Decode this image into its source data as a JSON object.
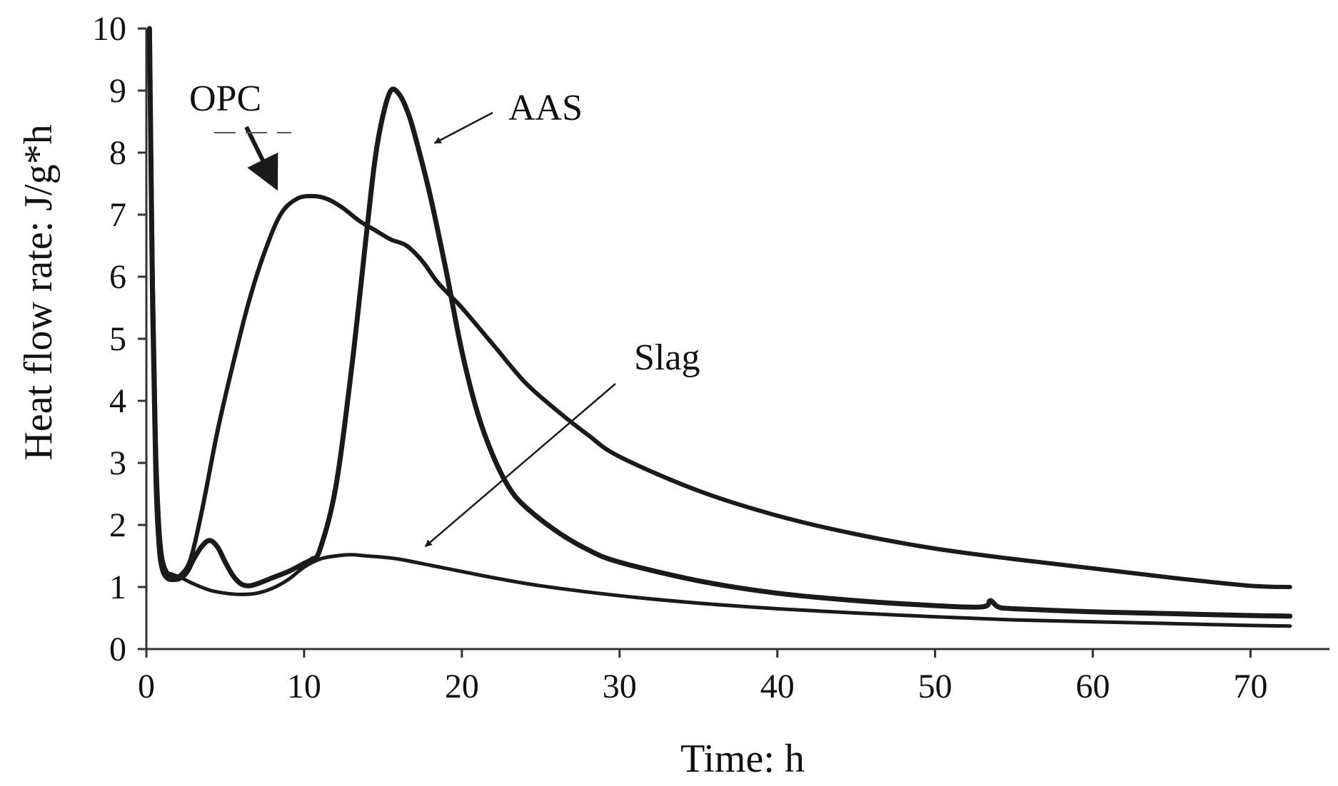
{
  "chart_data": {
    "type": "line",
    "title": "",
    "xlabel": "Time: h",
    "ylabel": "Heat flow rate: J/g*h",
    "xlim": [
      0,
      75
    ],
    "ylim": [
      0,
      10
    ],
    "x_ticks": [
      0,
      10,
      20,
      30,
      40,
      50,
      60,
      70
    ],
    "y_ticks": [
      0,
      1,
      2,
      3,
      4,
      5,
      6,
      7,
      8,
      9,
      10
    ],
    "grid": false,
    "colors": {
      "line": "#1a1a1a",
      "axis": "#333333"
    },
    "series": [
      {
        "name": "OPC",
        "label": "OPC",
        "x": [
          0.2,
          0.4,
          0.6,
          0.8,
          1.0,
          1.3,
          1.7,
          2.2,
          2.8,
          3.5,
          4.5,
          5.5,
          6.5,
          7.5,
          8.5,
          9.5,
          10.5,
          11.5,
          12.5,
          13.5,
          14.5,
          15.5,
          16.5,
          17.5,
          18.5,
          20,
          22,
          24,
          26,
          28,
          30,
          35,
          40,
          45,
          50,
          55,
          60,
          65,
          70,
          72.5
        ],
        "values": [
          10.0,
          6.0,
          3.2,
          2.0,
          1.45,
          1.2,
          1.15,
          1.2,
          1.45,
          2.2,
          3.5,
          4.6,
          5.6,
          6.4,
          7.0,
          7.25,
          7.3,
          7.25,
          7.1,
          6.9,
          6.75,
          6.6,
          6.5,
          6.25,
          5.9,
          5.5,
          4.9,
          4.3,
          3.85,
          3.45,
          3.1,
          2.55,
          2.15,
          1.85,
          1.62,
          1.45,
          1.3,
          1.15,
          1.02,
          1.0
        ]
      },
      {
        "name": "AAS",
        "label": "AAS",
        "x": [
          0.2,
          0.4,
          0.6,
          0.8,
          1.0,
          1.3,
          1.7,
          2.2,
          2.6,
          3.0,
          3.5,
          4.0,
          4.5,
          5.0,
          5.5,
          6.0,
          6.5,
          7.0,
          8.0,
          9.0,
          10.0,
          10.5,
          11.0,
          12.0,
          13.0,
          14.0,
          14.5,
          15.0,
          15.5,
          16.0,
          16.5,
          17.0,
          18.0,
          19.0,
          20.0,
          21.0,
          22.0,
          23.0,
          24.0,
          26.0,
          28.0,
          30.0,
          35.0,
          40.0,
          45.0,
          50.0,
          53.0,
          53.5,
          54.0,
          55.0,
          60.0,
          65.0,
          70.0,
          72.5
        ],
        "values": [
          10.0,
          5.5,
          2.8,
          1.7,
          1.3,
          1.15,
          1.12,
          1.15,
          1.25,
          1.45,
          1.65,
          1.75,
          1.65,
          1.4,
          1.18,
          1.05,
          1.02,
          1.05,
          1.15,
          1.25,
          1.38,
          1.45,
          1.6,
          2.6,
          4.5,
          6.8,
          7.9,
          8.6,
          9.0,
          8.95,
          8.7,
          8.3,
          7.3,
          6.1,
          4.8,
          3.8,
          3.1,
          2.6,
          2.3,
          1.9,
          1.6,
          1.4,
          1.1,
          0.9,
          0.78,
          0.7,
          0.68,
          0.78,
          0.68,
          0.65,
          0.6,
          0.57,
          0.54,
          0.53
        ]
      },
      {
        "name": "Slag",
        "label": "Slag",
        "x": [
          0.2,
          0.4,
          0.6,
          0.8,
          1.0,
          1.3,
          1.7,
          2.2,
          3.0,
          4.0,
          5.0,
          6.0,
          7.0,
          8.0,
          9.0,
          10.0,
          11.0,
          12.0,
          13.0,
          14.0,
          15.0,
          16.0,
          18.0,
          20.0,
          22.0,
          25.0,
          30.0,
          35.0,
          40.0,
          45.0,
          50.0,
          55.0,
          60.0,
          65.0,
          70.0,
          72.5
        ],
        "values": [
          10.0,
          6.2,
          3.5,
          2.1,
          1.5,
          1.25,
          1.2,
          1.15,
          1.05,
          0.95,
          0.9,
          0.88,
          0.9,
          0.98,
          1.12,
          1.32,
          1.45,
          1.5,
          1.52,
          1.5,
          1.48,
          1.45,
          1.35,
          1.25,
          1.15,
          1.02,
          0.86,
          0.74,
          0.65,
          0.58,
          0.52,
          0.47,
          0.44,
          0.41,
          0.38,
          0.37
        ]
      }
    ],
    "annotations": [
      {
        "text": "OPC",
        "series": "OPC",
        "arrow_to": {
          "x": 8.5,
          "y": 7.6
        }
      },
      {
        "text": "AAS",
        "series": "AAS",
        "arrow_to": {
          "x": 18.0,
          "y": 8.2
        }
      },
      {
        "text": "Slag",
        "series": "Slag",
        "arrow_to": {
          "x": 17.5,
          "y": 1.7
        }
      }
    ]
  }
}
